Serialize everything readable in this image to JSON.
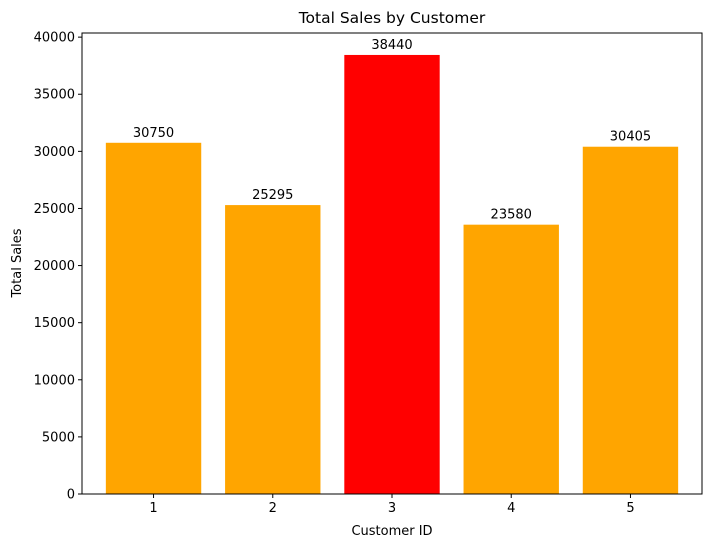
{
  "chart_data": {
    "type": "bar",
    "title": "Total Sales by Customer",
    "xlabel": "Customer ID",
    "ylabel": "Total Sales",
    "categories": [
      "1",
      "2",
      "3",
      "4",
      "5"
    ],
    "values": [
      30750,
      25295,
      38440,
      23580,
      30405
    ],
    "data_labels": [
      "30750",
      "25295",
      "38440",
      "23580",
      "30405"
    ],
    "bar_colors": [
      "#FFA500",
      "#FFA500",
      "#FF0000",
      "#FFA500",
      "#FFA500"
    ],
    "ylim": [
      0,
      40362
    ],
    "yticks": [
      0,
      5000,
      10000,
      15000,
      20000,
      25000,
      30000,
      35000,
      40000
    ],
    "ytick_labels": [
      "0",
      "5000",
      "10000",
      "15000",
      "20000",
      "25000",
      "30000",
      "35000",
      "40000"
    ],
    "grid": false,
    "legend": "none"
  }
}
